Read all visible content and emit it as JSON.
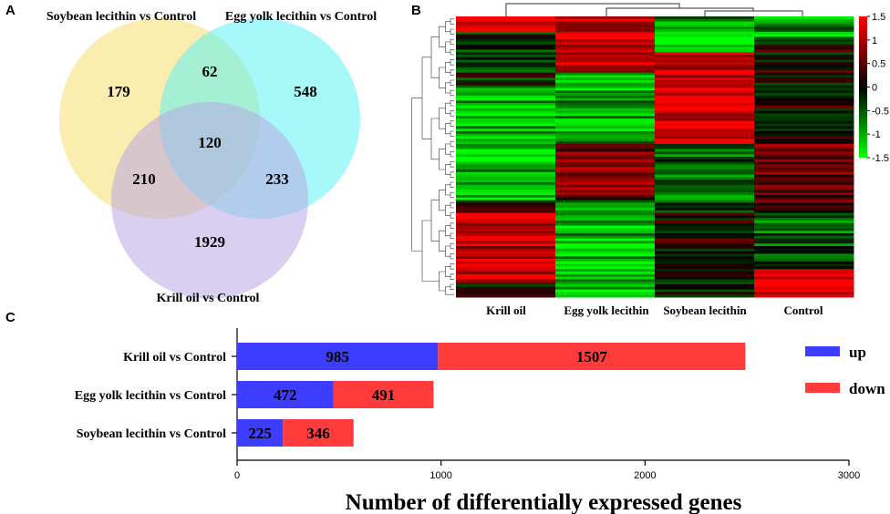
{
  "panels": {
    "a": "A",
    "b": "B",
    "c": "C"
  },
  "chart_data": [
    {
      "type": "venn",
      "sets": [
        "Soybean lecithin vs Control",
        "Egg yolk lecithin vs Control",
        "Krill oil vs Control"
      ],
      "regions": {
        "soy_only": 179,
        "egg_only": 548,
        "krill_only": 1929,
        "soy_egg": 62,
        "soy_krill": 210,
        "egg_krill": 233,
        "all_three": 120
      },
      "colors": [
        "#f7dc6f",
        "#5ef2f2",
        "#b9a7e3"
      ]
    },
    {
      "type": "heatmap",
      "columns": [
        "Krill oil",
        "Egg yolk lecithin",
        "Soybean lecithin",
        "Control"
      ],
      "colorbar": {
        "ticks": [
          "1.5",
          "1",
          "0.5",
          "0",
          "-0.5",
          "-1",
          "-1.5"
        ],
        "min": -1.5,
        "max": 1.5,
        "high_color": "#ff0000",
        "mid_color": "#000000",
        "low_color": "#00ff00"
      }
    },
    {
      "type": "bar",
      "orientation": "horizontal",
      "stacked": true,
      "categories": [
        "Krill oil vs Control",
        "Egg yolk lecithin vs Control",
        "Soybean lecithin vs Control"
      ],
      "series": [
        {
          "name": "up",
          "values": [
            985,
            472,
            225
          ],
          "color": "#3d3dff"
        },
        {
          "name": "down",
          "values": [
            1507,
            491,
            346
          ],
          "color": "#ff3b3b"
        }
      ],
      "xlabel": "Number of differentially expressed genes",
      "xlim": [
        0,
        3000
      ],
      "xticks": [
        "0",
        "1000",
        "2000",
        "3000"
      ]
    }
  ]
}
